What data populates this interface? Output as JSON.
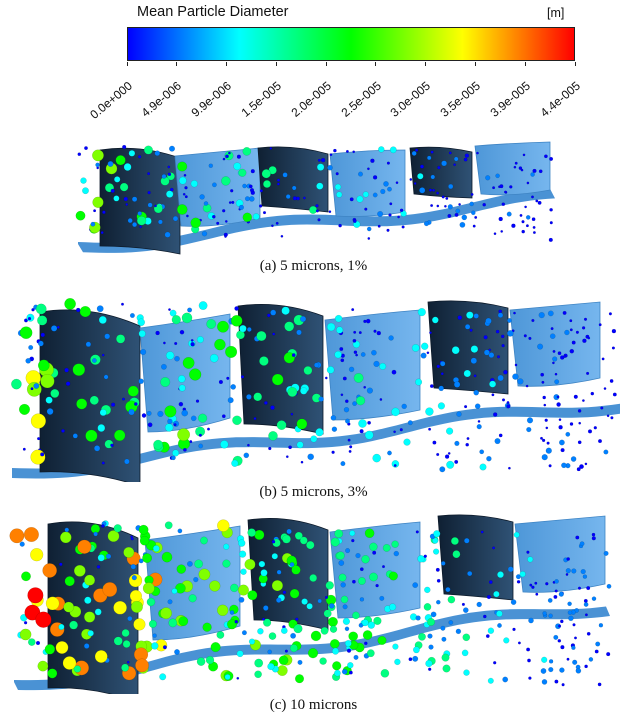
{
  "colorbar": {
    "title": "Mean Particle Diameter",
    "unit": "[m]",
    "tick_labels": [
      "0.0e+000",
      "4.9e-006",
      "9.9e-006",
      "1.5e-005",
      "2.0e-005",
      "2.5e-005",
      "3.0e-005",
      "3.5e-005",
      "3.9e-005",
      "4.4e-005"
    ],
    "colors": [
      "#0000ff",
      "#0080ff",
      "#00ffff",
      "#00ff80",
      "#00ff00",
      "#80ff00",
      "#ffff00",
      "#ff8000",
      "#ff0000"
    ]
  },
  "panels": [
    {
      "caption": "(a) 5 microns, 1%"
    },
    {
      "caption": "(b) 5 microns, 3%"
    },
    {
      "caption": "(c) 10 microns"
    }
  ],
  "colors": {
    "blade_dark": "#1e3550",
    "blade_light": "#5fa8e6",
    "platform": "#4a92d4"
  }
}
